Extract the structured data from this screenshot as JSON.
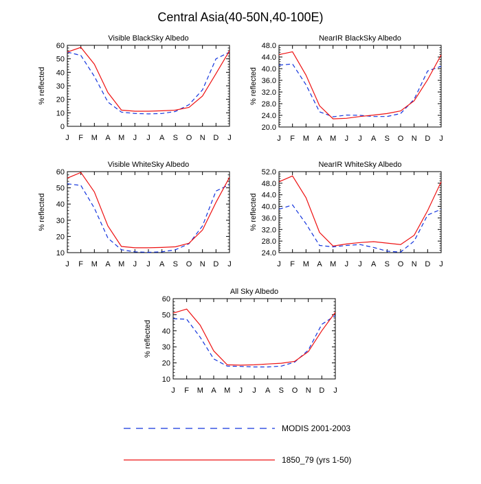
{
  "title": "Central Asia(40-50N,40-100E)",
  "colors": {
    "model": "#ee1111",
    "obs": "#1133dd",
    "axis": "#000000"
  },
  "legend": {
    "obs_label": "MODIS 2001-2003",
    "model_label": "1850_79 (yrs 1-50)"
  },
  "chart_data": [
    {
      "type": "line",
      "title": "Visible BlackSky Albedo",
      "ylabel": "% reflected",
      "xlabel": "",
      "categories": [
        "J",
        "F",
        "M",
        "A",
        "M",
        "J",
        "J",
        "A",
        "S",
        "O",
        "N",
        "D",
        "J"
      ],
      "ylim": [
        0,
        60
      ],
      "yticks": [
        0,
        10,
        20,
        30,
        40,
        50,
        60
      ],
      "ytick_labels": [
        "0",
        "10",
        "20",
        "30",
        "40",
        "50",
        "60"
      ],
      "series": [
        {
          "name": "MODIS 2001-2003",
          "style": "dashed",
          "values": [
            55,
            52.5,
            37,
            18,
            10.5,
            9.5,
            9.2,
            9.5,
            11,
            16,
            27,
            50,
            55
          ]
        },
        {
          "name": "1850_79 (yrs 1-50)",
          "style": "solid",
          "values": [
            55,
            58.5,
            46,
            25,
            12,
            11.2,
            11.2,
            11.5,
            12,
            14,
            22.5,
            39,
            56
          ]
        }
      ]
    },
    {
      "type": "line",
      "title": "NearIR BlackSky Albedo",
      "ylabel": "% reflected",
      "xlabel": "",
      "categories": [
        "J",
        "F",
        "M",
        "A",
        "M",
        "J",
        "J",
        "A",
        "S",
        "O",
        "N",
        "D",
        "J"
      ],
      "ylim": [
        20,
        48
      ],
      "yticks": [
        20,
        24,
        28,
        32,
        36,
        40,
        44,
        48
      ],
      "ytick_labels": [
        "20.0",
        "24.0",
        "28.0",
        "32.0",
        "36.0",
        "40.0",
        "44.0",
        "48.0"
      ],
      "series": [
        {
          "name": "MODIS 2001-2003",
          "style": "dashed",
          "values": [
            41.2,
            41.6,
            34.5,
            25.2,
            23.5,
            24.1,
            24.0,
            23.6,
            23.6,
            24.6,
            29.5,
            39.2,
            40.8
          ]
        },
        {
          "name": "1850_79 (yrs 1-50)",
          "style": "solid",
          "values": [
            44.8,
            45.8,
            37.8,
            27.3,
            22.8,
            23.0,
            23.6,
            24.1,
            24.6,
            25.5,
            29.0,
            36.2,
            44.7
          ]
        }
      ]
    },
    {
      "type": "line",
      "title": "Visible WhiteSky Albedo",
      "ylabel": "% reflected",
      "xlabel": "",
      "categories": [
        "J",
        "F",
        "M",
        "A",
        "M",
        "J",
        "J",
        "A",
        "S",
        "O",
        "N",
        "D",
        "J"
      ],
      "ylim": [
        10,
        60
      ],
      "yticks": [
        10,
        20,
        30,
        40,
        50,
        60
      ],
      "ytick_labels": [
        "10",
        "20",
        "30",
        "40",
        "50",
        "60"
      ],
      "series": [
        {
          "name": "MODIS 2001-2003",
          "style": "dashed",
          "values": [
            52.5,
            51.5,
            37.5,
            19,
            11.8,
            10.5,
            10.2,
            10.5,
            11.8,
            15.5,
            26.5,
            48,
            52
          ]
        },
        {
          "name": "1850_79 (yrs 1-50)",
          "style": "solid",
          "values": [
            56,
            59.5,
            47.5,
            26.5,
            13.8,
            13,
            13,
            13.2,
            13.6,
            15.8,
            24,
            41,
            56.5
          ]
        }
      ]
    },
    {
      "type": "line",
      "title": "NearIR WhiteSky Albedo",
      "ylabel": "% reflected",
      "xlabel": "",
      "categories": [
        "J",
        "F",
        "M",
        "A",
        "M",
        "J",
        "J",
        "A",
        "S",
        "O",
        "N",
        "D",
        "J"
      ],
      "ylim": [
        24,
        52
      ],
      "yticks": [
        24,
        28,
        32,
        36,
        40,
        44,
        48,
        52
      ],
      "ytick_labels": [
        "24.0",
        "28.0",
        "32.0",
        "36.0",
        "40.0",
        "44.0",
        "48.0",
        "52.0"
      ],
      "series": [
        {
          "name": "MODIS 2001-2003",
          "style": "dashed",
          "values": [
            39,
            40.5,
            34,
            26.5,
            26,
            26.5,
            26.8,
            25.8,
            24.5,
            24.2,
            28,
            37,
            39
          ]
        },
        {
          "name": "1850_79 (yrs 1-50)",
          "style": "solid",
          "values": [
            48.5,
            50.5,
            43,
            31,
            26.3,
            27,
            27.5,
            27.8,
            27.3,
            26.8,
            30,
            38.5,
            48.5
          ]
        }
      ]
    },
    {
      "type": "line",
      "title": "All Sky Albedo",
      "ylabel": "% reflected",
      "xlabel": "",
      "categories": [
        "J",
        "F",
        "M",
        "A",
        "M",
        "J",
        "J",
        "A",
        "S",
        "O",
        "N",
        "D",
        "J"
      ],
      "ylim": [
        10,
        60
      ],
      "yticks": [
        10,
        20,
        30,
        40,
        50,
        60
      ],
      "ytick_labels": [
        "10",
        "20",
        "30",
        "40",
        "50",
        "60"
      ],
      "series": [
        {
          "name": "MODIS 2001-2003",
          "style": "dashed",
          "values": [
            47.5,
            47.2,
            36,
            22.5,
            18,
            17.8,
            17.5,
            17.5,
            18,
            20.5,
            28,
            44,
            49.5
          ]
        },
        {
          "name": "1850_79 (yrs 1-50)",
          "style": "solid",
          "values": [
            51,
            53.5,
            43.5,
            27.5,
            18.8,
            18.6,
            18.8,
            19.3,
            19.8,
            21,
            27,
            40,
            51.5
          ]
        }
      ]
    }
  ]
}
